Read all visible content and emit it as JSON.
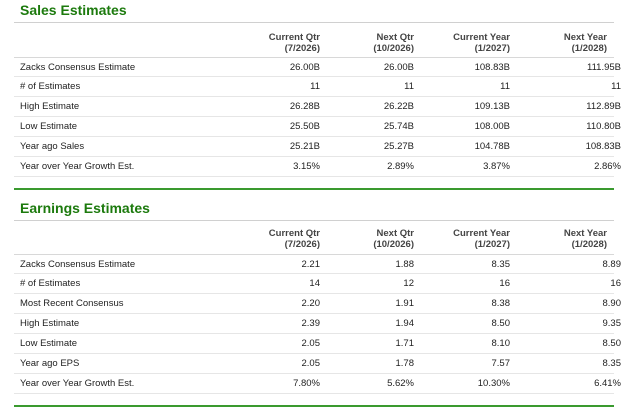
{
  "sales": {
    "title": "Sales Estimates",
    "headers": [
      {
        "line1": "Current Qtr",
        "line2": "(7/2026)"
      },
      {
        "line1": "Next Qtr",
        "line2": "(10/2026)"
      },
      {
        "line1": "Current Year",
        "line2": "(1/2027)"
      },
      {
        "line1": "Next Year",
        "line2": "(1/2028)"
      }
    ],
    "rows": [
      {
        "label": "Zacks Consensus Estimate",
        "values": [
          "26.00B",
          "26.00B",
          "108.83B",
          "111.95B"
        ]
      },
      {
        "label": "# of Estimates",
        "values": [
          "11",
          "11",
          "11",
          "11"
        ]
      },
      {
        "label": "High Estimate",
        "values": [
          "26.28B",
          "26.22B",
          "109.13B",
          "112.89B"
        ]
      },
      {
        "label": "Low Estimate",
        "values": [
          "25.50B",
          "25.74B",
          "108.00B",
          "110.80B"
        ]
      },
      {
        "label": "Year ago Sales",
        "values": [
          "25.21B",
          "25.27B",
          "104.78B",
          "108.83B"
        ]
      },
      {
        "label": "Year over Year Growth Est.",
        "values": [
          "3.15%",
          "2.89%",
          "3.87%",
          "2.86%"
        ]
      }
    ]
  },
  "earnings": {
    "title": "Earnings Estimates",
    "headers": [
      {
        "line1": "Current Qtr",
        "line2": "(7/2026)"
      },
      {
        "line1": "Next Qtr",
        "line2": "(10/2026)"
      },
      {
        "line1": "Current Year",
        "line2": "(1/2027)"
      },
      {
        "line1": "Next Year",
        "line2": "(1/2028)"
      }
    ],
    "rows": [
      {
        "label": "Zacks Consensus Estimate",
        "values": [
          "2.21",
          "1.88",
          "8.35",
          "8.89"
        ]
      },
      {
        "label": "# of Estimates",
        "values": [
          "14",
          "12",
          "16",
          "16"
        ]
      },
      {
        "label": "Most Recent Consensus",
        "values": [
          "2.20",
          "1.91",
          "8.38",
          "8.90"
        ]
      },
      {
        "label": "High Estimate",
        "values": [
          "2.39",
          "1.94",
          "8.50",
          "9.35"
        ]
      },
      {
        "label": "Low Estimate",
        "values": [
          "2.05",
          "1.71",
          "8.10",
          "8.50"
        ]
      },
      {
        "label": "Year ago EPS",
        "values": [
          "2.05",
          "1.78",
          "7.57",
          "8.35"
        ]
      },
      {
        "label": "Year over Year Growth Est.",
        "values": [
          "7.80%",
          "5.62%",
          "10.30%",
          "6.41%"
        ]
      }
    ]
  }
}
